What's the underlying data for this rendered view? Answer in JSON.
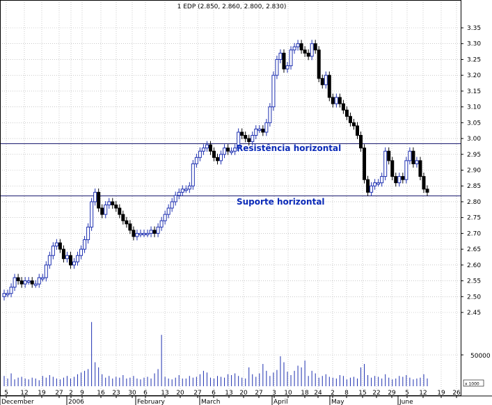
{
  "chart_data": {
    "type": "candlestick",
    "title": "1 EDP (2.850, 2.860, 2.800, 2.830)",
    "y_ticks": [
      "3.35",
      "3.30",
      "3.25",
      "3.20",
      "3.15",
      "3.10",
      "3.05",
      "3.00",
      "2.95",
      "2.90",
      "2.85",
      "2.80",
      "2.75",
      "2.70",
      "2.65",
      "2.60",
      "2.55",
      "2.50",
      "2.45"
    ],
    "ylim": [
      2.45,
      3.35
    ],
    "x_day_ticks": [
      "5",
      "12",
      "19",
      "27",
      "2",
      "9",
      "16",
      "23",
      "30",
      "6",
      "13",
      "20",
      "27",
      "6",
      "13",
      "20",
      "27",
      "3",
      "10",
      "18",
      "24",
      "2",
      "8",
      "15",
      "22",
      "29",
      "5",
      "12",
      "19",
      "26"
    ],
    "months": [
      "December",
      "2006",
      "February",
      "March",
      "April",
      "May",
      "June"
    ],
    "volume_tick": "50000",
    "volume_unit": "x 1000",
    "grid": true,
    "annotations": [
      {
        "text": "Resistência horizontal",
        "level": 2.985
      },
      {
        "text": "Suporte horizontal",
        "level": 2.82
      }
    ],
    "closes": [
      2.51,
      2.51,
      2.53,
      2.56,
      2.55,
      2.54,
      2.55,
      2.55,
      2.54,
      2.54,
      2.56,
      2.56,
      2.6,
      2.63,
      2.66,
      2.67,
      2.65,
      2.62,
      2.63,
      2.6,
      2.61,
      2.63,
      2.65,
      2.68,
      2.72,
      2.8,
      2.83,
      2.78,
      2.76,
      2.79,
      2.8,
      2.79,
      2.78,
      2.76,
      2.74,
      2.73,
      2.71,
      2.69,
      2.7,
      2.7,
      2.7,
      2.7,
      2.71,
      2.7,
      2.72,
      2.74,
      2.76,
      2.78,
      2.8,
      2.82,
      2.83,
      2.84,
      2.84,
      2.85,
      2.92,
      2.94,
      2.96,
      2.97,
      2.98,
      2.96,
      2.94,
      2.93,
      2.95,
      2.97,
      2.96,
      2.96,
      2.97,
      3.02,
      3.01,
      3.0,
      2.99,
      3.01,
      3.03,
      3.03,
      3.02,
      3.05,
      3.1,
      3.2,
      3.25,
      3.27,
      3.22,
      3.23,
      3.28,
      3.29,
      3.3,
      3.28,
      3.27,
      3.26,
      3.3,
      3.28,
      3.19,
      3.17,
      3.2,
      3.13,
      3.11,
      3.13,
      3.11,
      3.09,
      3.07,
      3.05,
      3.04,
      3.01,
      2.97,
      2.87,
      2.83,
      2.85,
      2.86,
      2.86,
      2.88,
      2.96,
      2.93,
      2.88,
      2.86,
      2.88,
      2.87,
      2.93,
      2.96,
      2.92,
      2.93,
      2.88,
      2.84,
      2.83
    ],
    "volumes": [
      12,
      9,
      15,
      8,
      10,
      11,
      9,
      8,
      10,
      9,
      7,
      12,
      10,
      13,
      11,
      9,
      8,
      10,
      12,
      9,
      11,
      14,
      16,
      18,
      20,
      75,
      28,
      22,
      14,
      10,
      12,
      9,
      11,
      10,
      13,
      9,
      10,
      12,
      9,
      8,
      10,
      11,
      9,
      15,
      20,
      60,
      11,
      9,
      8,
      10,
      13,
      9,
      9,
      12,
      10,
      11,
      14,
      18,
      16,
      10,
      9,
      12,
      11,
      10,
      14,
      13,
      15,
      12,
      10,
      9,
      22,
      14,
      11,
      15,
      26,
      18,
      12,
      16,
      19,
      35,
      28,
      17,
      13,
      18,
      24,
      22,
      30,
      12,
      18,
      15,
      10,
      12,
      14,
      11,
      10,
      9,
      13,
      12,
      8,
      10,
      11,
      9,
      22,
      26,
      13,
      10,
      12,
      11,
      9,
      14,
      10,
      8,
      9,
      12,
      11,
      13,
      10,
      8,
      9,
      10,
      14,
      9
    ]
  }
}
